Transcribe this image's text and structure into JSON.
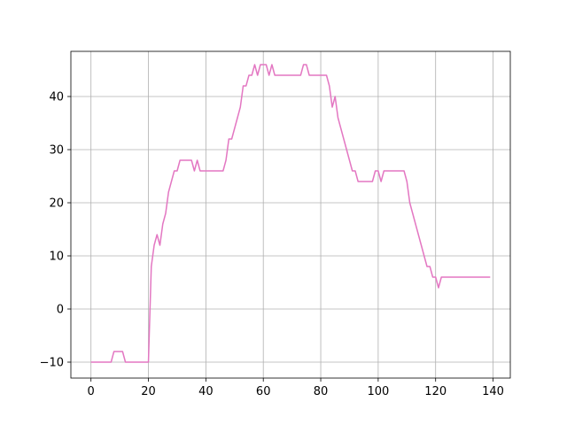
{
  "chart_data": {
    "type": "line",
    "title": "",
    "xlabel": "",
    "ylabel": "",
    "xlim": [
      -7,
      146
    ],
    "ylim": [
      -13,
      48.5
    ],
    "xticks": [
      0,
      20,
      40,
      60,
      80,
      100,
      120,
      140
    ],
    "yticks": [
      -10,
      0,
      10,
      20,
      30,
      40
    ],
    "xtick_labels": [
      "0",
      "20",
      "40",
      "60",
      "80",
      "100",
      "120",
      "140"
    ],
    "ytick_labels": [
      "−10",
      "0",
      "10",
      "20",
      "30",
      "40"
    ],
    "grid": true,
    "legend": "none",
    "series": [
      {
        "color": "#e377c2",
        "points": [
          [
            0,
            -10
          ],
          [
            7,
            -10
          ],
          [
            8,
            -8
          ],
          [
            11,
            -8
          ],
          [
            12,
            -10
          ],
          [
            20,
            -10
          ],
          [
            21,
            8
          ],
          [
            22,
            12
          ],
          [
            23,
            14
          ],
          [
            24,
            12
          ],
          [
            25,
            16
          ],
          [
            26,
            18
          ],
          [
            27,
            22
          ],
          [
            28,
            24
          ],
          [
            29,
            26
          ],
          [
            30,
            26
          ],
          [
            31,
            28
          ],
          [
            35,
            28
          ],
          [
            36,
            26
          ],
          [
            37,
            28
          ],
          [
            38,
            26
          ],
          [
            46,
            26
          ],
          [
            47,
            28
          ],
          [
            48,
            32
          ],
          [
            49,
            32
          ],
          [
            50,
            34
          ],
          [
            51,
            36
          ],
          [
            52,
            38
          ],
          [
            53,
            42
          ],
          [
            54,
            42
          ],
          [
            55,
            44
          ],
          [
            56,
            44
          ],
          [
            57,
            46
          ],
          [
            58,
            44
          ],
          [
            59,
            46
          ],
          [
            61,
            46
          ],
          [
            62,
            44
          ],
          [
            63,
            46
          ],
          [
            64,
            44
          ],
          [
            73,
            44
          ],
          [
            74,
            46
          ],
          [
            75,
            46
          ],
          [
            76,
            44
          ],
          [
            82,
            44
          ],
          [
            83,
            42
          ],
          [
            84,
            38
          ],
          [
            85,
            40
          ],
          [
            86,
            36
          ],
          [
            87,
            34
          ],
          [
            88,
            32
          ],
          [
            89,
            30
          ],
          [
            90,
            28
          ],
          [
            91,
            26
          ],
          [
            92,
            26
          ],
          [
            93,
            24
          ],
          [
            98,
            24
          ],
          [
            99,
            26
          ],
          [
            100,
            26
          ],
          [
            101,
            24
          ],
          [
            102,
            26
          ],
          [
            109,
            26
          ],
          [
            110,
            24
          ],
          [
            111,
            20
          ],
          [
            112,
            18
          ],
          [
            113,
            16
          ],
          [
            114,
            14
          ],
          [
            115,
            12
          ],
          [
            116,
            10
          ],
          [
            117,
            8
          ],
          [
            118,
            8
          ],
          [
            119,
            6
          ],
          [
            120,
            6
          ],
          [
            121,
            4
          ],
          [
            122,
            6
          ],
          [
            139,
            6
          ]
        ]
      }
    ]
  }
}
